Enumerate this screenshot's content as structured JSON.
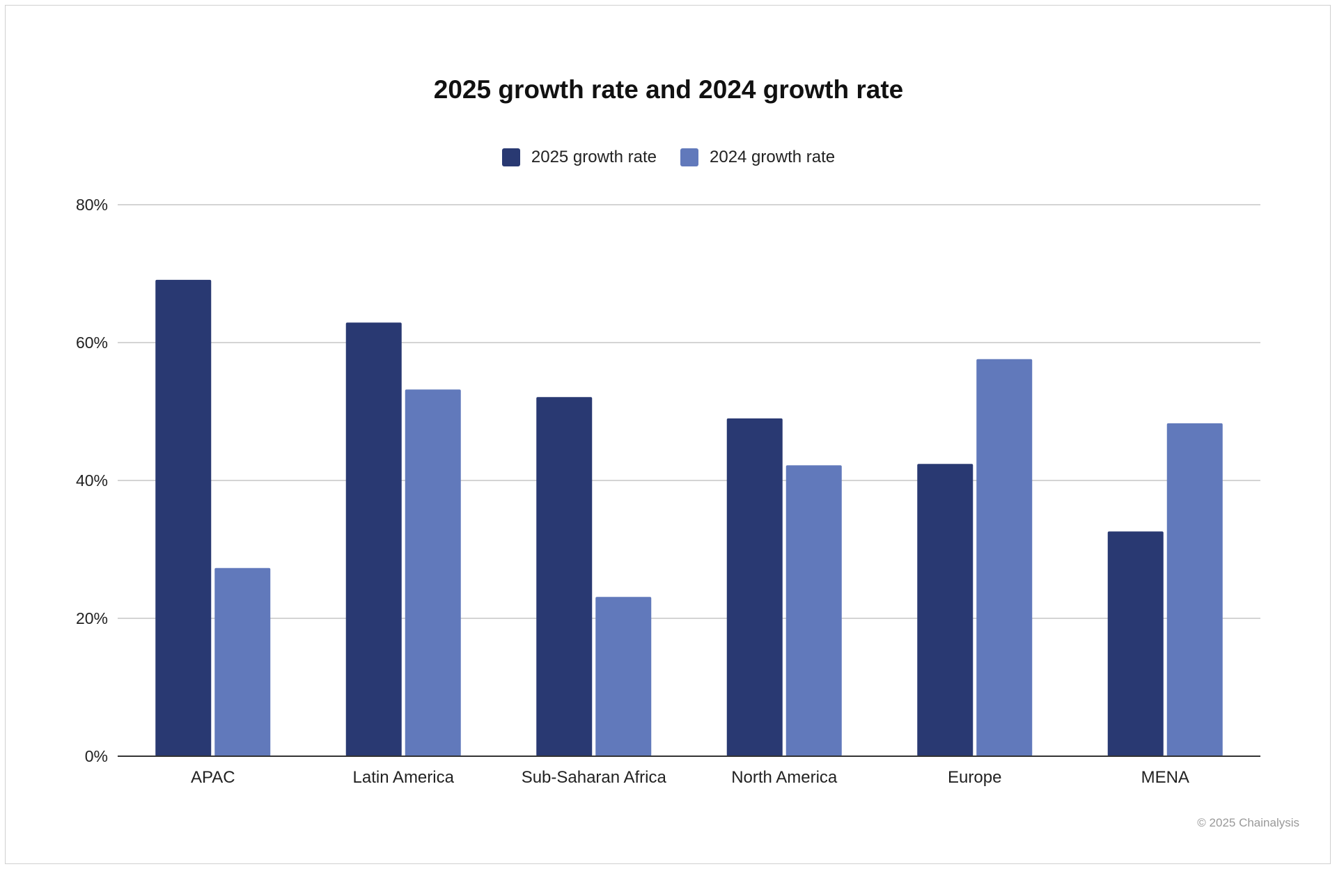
{
  "chart_data": {
    "type": "bar",
    "title": "2025 growth rate and 2024 growth rate",
    "categories": [
      "APAC",
      "Latin America",
      "Sub-Saharan Africa",
      "North America",
      "Europe",
      "MENA"
    ],
    "series": [
      {
        "name": "2025 growth rate",
        "color": "#293972",
        "values": [
          69.1,
          62.9,
          52.1,
          49.0,
          42.4,
          32.6
        ]
      },
      {
        "name": "2024 growth rate",
        "color": "#6179bb",
        "values": [
          27.3,
          53.2,
          23.1,
          42.2,
          57.6,
          48.3
        ]
      }
    ],
    "ylim": [
      0,
      80
    ],
    "yticks": [
      0,
      20,
      40,
      60,
      80
    ],
    "ytick_labels": [
      "0%",
      "20%",
      "40%",
      "60%",
      "80%"
    ],
    "xlabel": "",
    "ylabel": "",
    "grid": true,
    "legend_position": "top"
  },
  "footer": {
    "copyright": "© 2025 Chainalysis"
  }
}
